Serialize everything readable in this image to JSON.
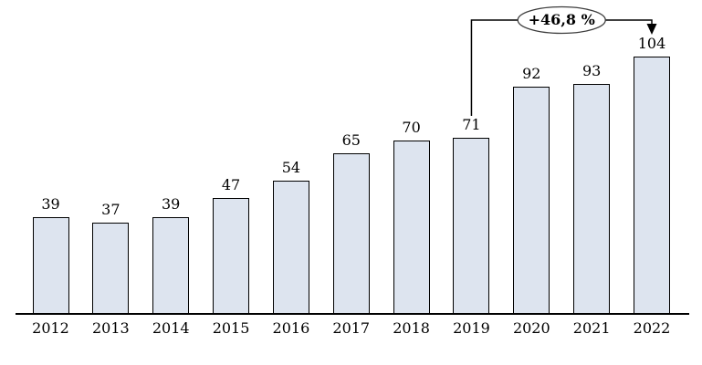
{
  "chart_data": {
    "type": "bar",
    "title": "",
    "xlabel": "",
    "ylabel": "",
    "categories": [
      "2012",
      "2013",
      "2014",
      "2015",
      "2016",
      "2017",
      "2018",
      "2019",
      "2020",
      "2021",
      "2022"
    ],
    "values": [
      39,
      37,
      39,
      47,
      54,
      65,
      70,
      71,
      92,
      93,
      104
    ],
    "ylim": [
      0,
      110
    ],
    "grid": false,
    "legend": "none",
    "bar_value_labels_shown": true,
    "annotation": {
      "label": "+46,8 %",
      "from_category": "2019",
      "to_category": "2022"
    },
    "colors": {
      "bar_fill": "#dde4ef",
      "bar_border": "#000000",
      "axis": "#000000",
      "text": "#000000",
      "annotation_fill": "#ffffff",
      "annotation_border": "#3d3d3d"
    }
  }
}
